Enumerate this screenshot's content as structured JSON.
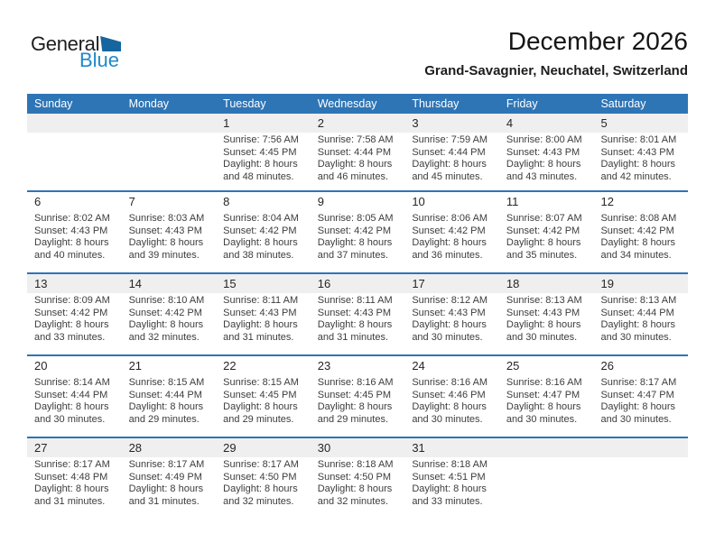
{
  "logo": {
    "general": "General",
    "blue": "Blue"
  },
  "header": {
    "title": "December 2026",
    "subtitle": "Grand-Savagnier, Neuchatel, Switzerland"
  },
  "colors": {
    "header_bar": "#2e75b6",
    "separator": "#2e75b6",
    "shade_strip": "#efefef",
    "logo_triangle": "#15669f",
    "logo_blue_text": "#2089ca",
    "body_text": "#3d3d3d"
  },
  "calendar": {
    "weekdays": [
      "Sunday",
      "Monday",
      "Tuesday",
      "Wednesday",
      "Thursday",
      "Friday",
      "Saturday"
    ],
    "weeks": [
      [
        null,
        null,
        {
          "day": "1",
          "lines": [
            "Sunrise: 7:56 AM",
            "Sunset: 4:45 PM",
            "Daylight: 8 hours",
            "and 48 minutes."
          ]
        },
        {
          "day": "2",
          "lines": [
            "Sunrise: 7:58 AM",
            "Sunset: 4:44 PM",
            "Daylight: 8 hours",
            "and 46 minutes."
          ]
        },
        {
          "day": "3",
          "lines": [
            "Sunrise: 7:59 AM",
            "Sunset: 4:44 PM",
            "Daylight: 8 hours",
            "and 45 minutes."
          ]
        },
        {
          "day": "4",
          "lines": [
            "Sunrise: 8:00 AM",
            "Sunset: 4:43 PM",
            "Daylight: 8 hours",
            "and 43 minutes."
          ]
        },
        {
          "day": "5",
          "lines": [
            "Sunrise: 8:01 AM",
            "Sunset: 4:43 PM",
            "Daylight: 8 hours",
            "and 42 minutes."
          ]
        }
      ],
      [
        {
          "day": "6",
          "lines": [
            "Sunrise: 8:02 AM",
            "Sunset: 4:43 PM",
            "Daylight: 8 hours",
            "and 40 minutes."
          ]
        },
        {
          "day": "7",
          "lines": [
            "Sunrise: 8:03 AM",
            "Sunset: 4:43 PM",
            "Daylight: 8 hours",
            "and 39 minutes."
          ]
        },
        {
          "day": "8",
          "lines": [
            "Sunrise: 8:04 AM",
            "Sunset: 4:42 PM",
            "Daylight: 8 hours",
            "and 38 minutes."
          ]
        },
        {
          "day": "9",
          "lines": [
            "Sunrise: 8:05 AM",
            "Sunset: 4:42 PM",
            "Daylight: 8 hours",
            "and 37 minutes."
          ]
        },
        {
          "day": "10",
          "lines": [
            "Sunrise: 8:06 AM",
            "Sunset: 4:42 PM",
            "Daylight: 8 hours",
            "and 36 minutes."
          ]
        },
        {
          "day": "11",
          "lines": [
            "Sunrise: 8:07 AM",
            "Sunset: 4:42 PM",
            "Daylight: 8 hours",
            "and 35 minutes."
          ]
        },
        {
          "day": "12",
          "lines": [
            "Sunrise: 8:08 AM",
            "Sunset: 4:42 PM",
            "Daylight: 8 hours",
            "and 34 minutes."
          ]
        }
      ],
      [
        {
          "day": "13",
          "lines": [
            "Sunrise: 8:09 AM",
            "Sunset: 4:42 PM",
            "Daylight: 8 hours",
            "and 33 minutes."
          ]
        },
        {
          "day": "14",
          "lines": [
            "Sunrise: 8:10 AM",
            "Sunset: 4:42 PM",
            "Daylight: 8 hours",
            "and 32 minutes."
          ]
        },
        {
          "day": "15",
          "lines": [
            "Sunrise: 8:11 AM",
            "Sunset: 4:43 PM",
            "Daylight: 8 hours",
            "and 31 minutes."
          ]
        },
        {
          "day": "16",
          "lines": [
            "Sunrise: 8:11 AM",
            "Sunset: 4:43 PM",
            "Daylight: 8 hours",
            "and 31 minutes."
          ]
        },
        {
          "day": "17",
          "lines": [
            "Sunrise: 8:12 AM",
            "Sunset: 4:43 PM",
            "Daylight: 8 hours",
            "and 30 minutes."
          ]
        },
        {
          "day": "18",
          "lines": [
            "Sunrise: 8:13 AM",
            "Sunset: 4:43 PM",
            "Daylight: 8 hours",
            "and 30 minutes."
          ]
        },
        {
          "day": "19",
          "lines": [
            "Sunrise: 8:13 AM",
            "Sunset: 4:44 PM",
            "Daylight: 8 hours",
            "and 30 minutes."
          ]
        }
      ],
      [
        {
          "day": "20",
          "lines": [
            "Sunrise: 8:14 AM",
            "Sunset: 4:44 PM",
            "Daylight: 8 hours",
            "and 30 minutes."
          ]
        },
        {
          "day": "21",
          "lines": [
            "Sunrise: 8:15 AM",
            "Sunset: 4:44 PM",
            "Daylight: 8 hours",
            "and 29 minutes."
          ]
        },
        {
          "day": "22",
          "lines": [
            "Sunrise: 8:15 AM",
            "Sunset: 4:45 PM",
            "Daylight: 8 hours",
            "and 29 minutes."
          ]
        },
        {
          "day": "23",
          "lines": [
            "Sunrise: 8:16 AM",
            "Sunset: 4:45 PM",
            "Daylight: 8 hours",
            "and 29 minutes."
          ]
        },
        {
          "day": "24",
          "lines": [
            "Sunrise: 8:16 AM",
            "Sunset: 4:46 PM",
            "Daylight: 8 hours",
            "and 30 minutes."
          ]
        },
        {
          "day": "25",
          "lines": [
            "Sunrise: 8:16 AM",
            "Sunset: 4:47 PM",
            "Daylight: 8 hours",
            "and 30 minutes."
          ]
        },
        {
          "day": "26",
          "lines": [
            "Sunrise: 8:17 AM",
            "Sunset: 4:47 PM",
            "Daylight: 8 hours",
            "and 30 minutes."
          ]
        }
      ],
      [
        {
          "day": "27",
          "lines": [
            "Sunrise: 8:17 AM",
            "Sunset: 4:48 PM",
            "Daylight: 8 hours",
            "and 31 minutes."
          ]
        },
        {
          "day": "28",
          "lines": [
            "Sunrise: 8:17 AM",
            "Sunset: 4:49 PM",
            "Daylight: 8 hours",
            "and 31 minutes."
          ]
        },
        {
          "day": "29",
          "lines": [
            "Sunrise: 8:17 AM",
            "Sunset: 4:50 PM",
            "Daylight: 8 hours",
            "and 32 minutes."
          ]
        },
        {
          "day": "30",
          "lines": [
            "Sunrise: 8:18 AM",
            "Sunset: 4:50 PM",
            "Daylight: 8 hours",
            "and 32 minutes."
          ]
        },
        {
          "day": "31",
          "lines": [
            "Sunrise: 8:18 AM",
            "Sunset: 4:51 PM",
            "Daylight: 8 hours",
            "and 33 minutes."
          ]
        },
        null,
        null
      ]
    ]
  }
}
